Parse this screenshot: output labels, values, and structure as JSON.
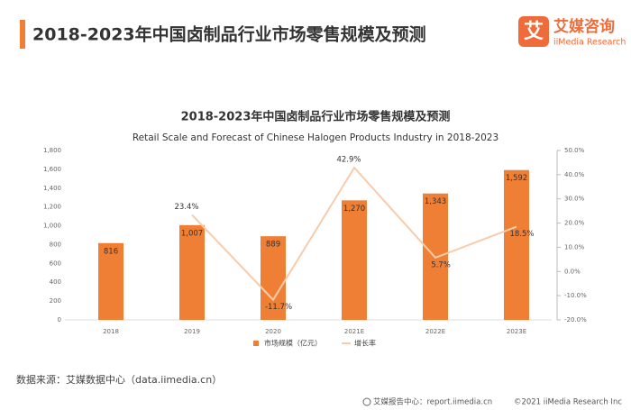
{
  "header": {
    "title": "2018-2023年中国卤制品行业市场零售规模及预测",
    "logo": {
      "icon": "艾",
      "name": "艾媒咨询",
      "sub": "iiMedia Research"
    }
  },
  "chart_data": {
    "type": "bar",
    "title": "2018-2023年中国卤制品行业市场零售规模及预测",
    "subtitle": "Retail Scale and Forecast of Chinese Halogen Products Industry in 2018-2023",
    "categories": [
      "2018",
      "2019",
      "2020",
      "2021E",
      "2022E",
      "2023E"
    ],
    "series": [
      {
        "name": "市场规模（亿元）",
        "color": "#ef7f34",
        "values": [
          816,
          1007,
          889,
          1270,
          1343,
          1592
        ],
        "value_labels": [
          "816",
          "1,007",
          "889",
          "1,270",
          "1,343",
          "1,592"
        ]
      },
      {
        "name": "增长率",
        "type": "line",
        "axis": "y2",
        "color": "#f8cbab",
        "values": [
          null,
          23.4,
          -11.7,
          42.9,
          5.7,
          18.5
        ],
        "value_labels": [
          null,
          "23.4%",
          "-11.7%",
          "42.9%",
          "5.7%",
          "18.5%"
        ]
      }
    ],
    "ylim": [
      0,
      1800
    ],
    "yticks": [
      0,
      200,
      400,
      600,
      800,
      {
        "value": 1000,
        "label": "1,000"
      },
      {
        "value": 1200,
        "label": "1,200"
      },
      {
        "value": 1400,
        "label": "1,400"
      },
      {
        "value": 1600,
        "label": "1,600"
      },
      {
        "value": 1800,
        "label": "1,800"
      }
    ],
    "y2lim": [
      -20,
      50
    ],
    "y2ticks": [
      {
        "value": -20,
        "label": "-20.0%"
      },
      {
        "value": -10,
        "label": "-10.0%"
      },
      {
        "value": 0,
        "label": "0.0%"
      },
      {
        "value": 10,
        "label": "10.0%"
      },
      {
        "value": 20,
        "label": "20.0%"
      },
      {
        "value": 30,
        "label": "30.0%"
      },
      {
        "value": 40,
        "label": "40.0%"
      },
      {
        "value": 50,
        "label": "50.0%"
      }
    ]
  },
  "source": "数据来源：艾媒数据中心（data.iimedia.cn）",
  "footer": {
    "left": "艾媒报告中心：report.iimedia.cn",
    "right": "©2021  iiMedia Research  Inc"
  }
}
